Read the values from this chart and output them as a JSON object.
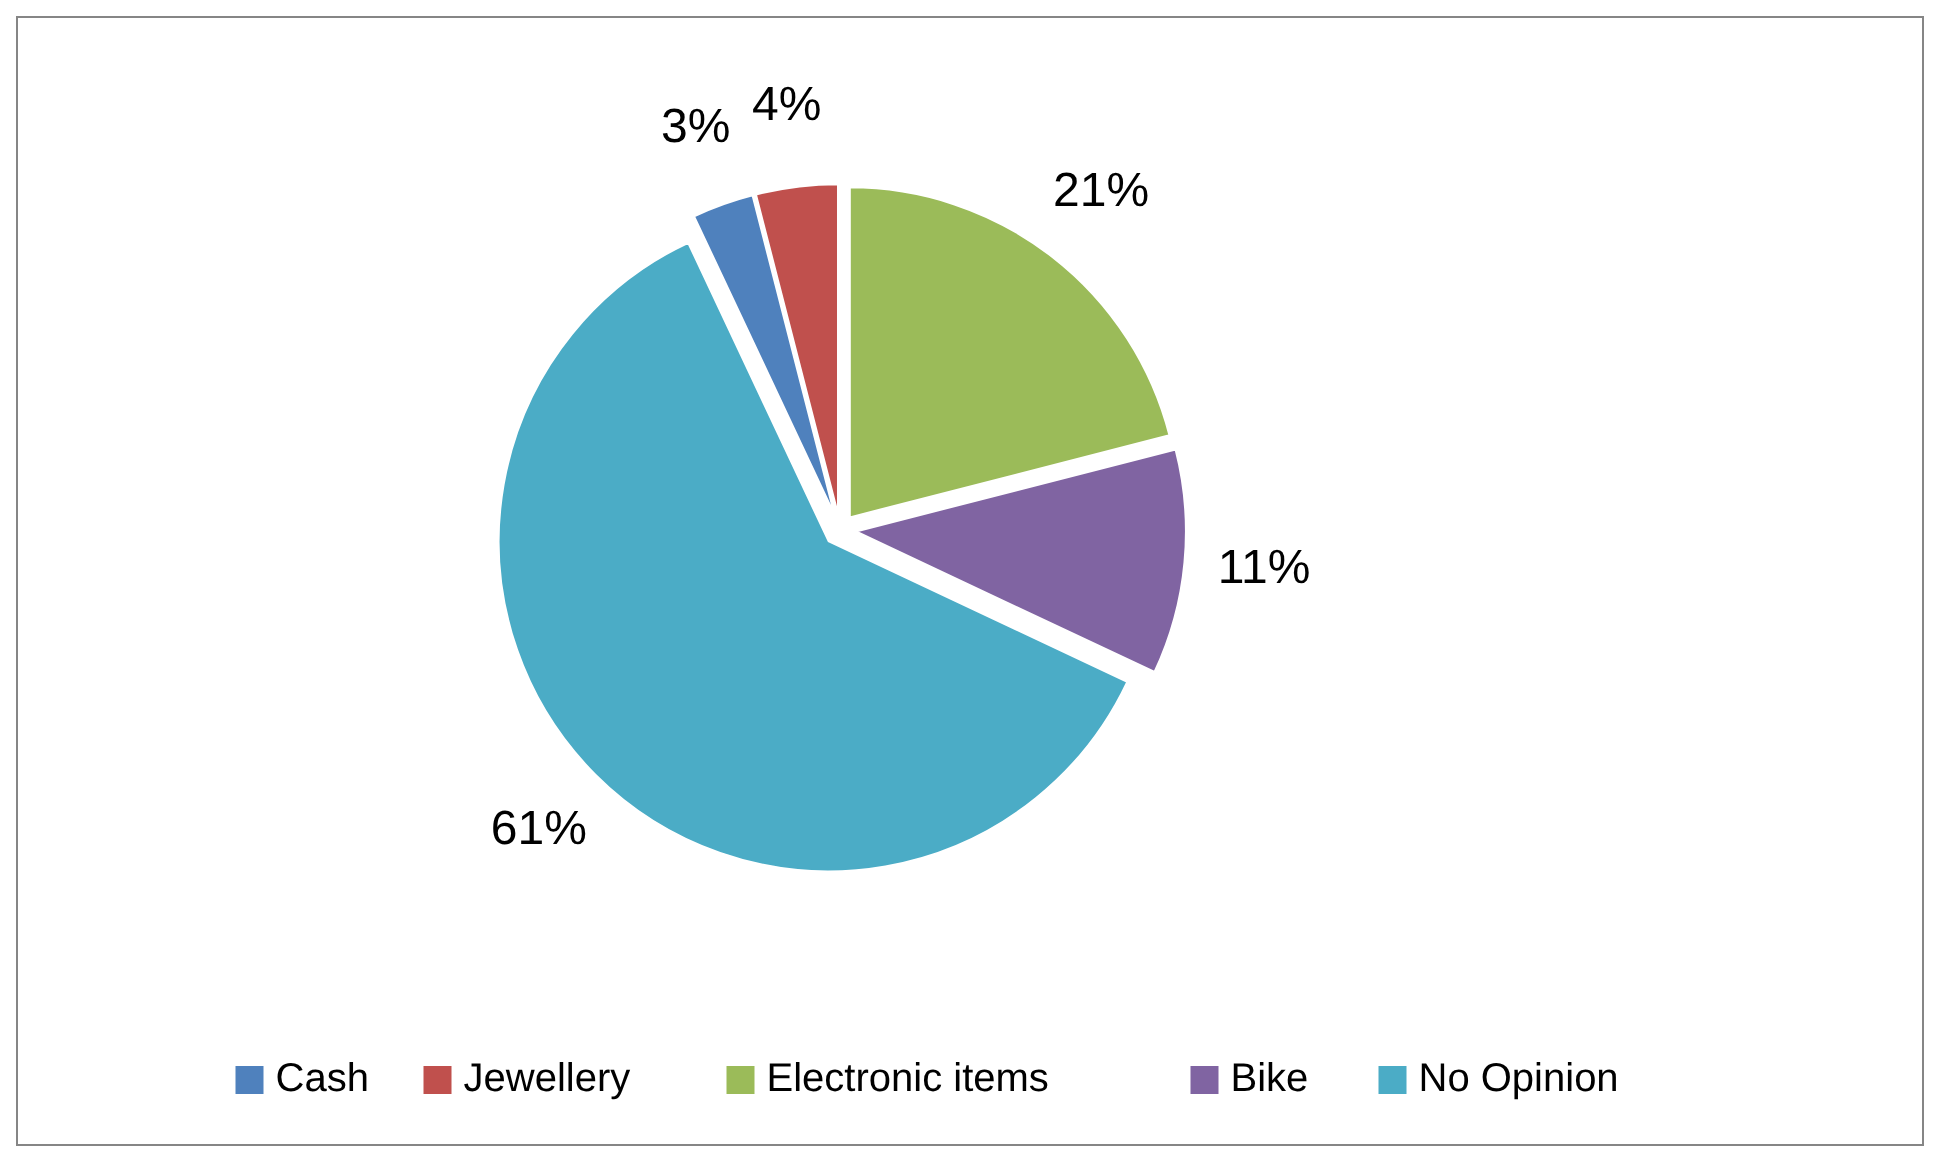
{
  "chart_data": {
    "type": "pie",
    "categories": [
      "Cash",
      "Jewellery",
      "Electronic items",
      "Bike",
      "No Opinion"
    ],
    "values": [
      3,
      4,
      21,
      11,
      61
    ],
    "colors": [
      "#4f81bd",
      "#c0504d",
      "#9bbb59",
      "#8064a2",
      "#4bacc6"
    ],
    "value_labels": [
      "3%",
      "4%",
      "21%",
      "11%",
      "61%"
    ],
    "legend": "bottom"
  }
}
